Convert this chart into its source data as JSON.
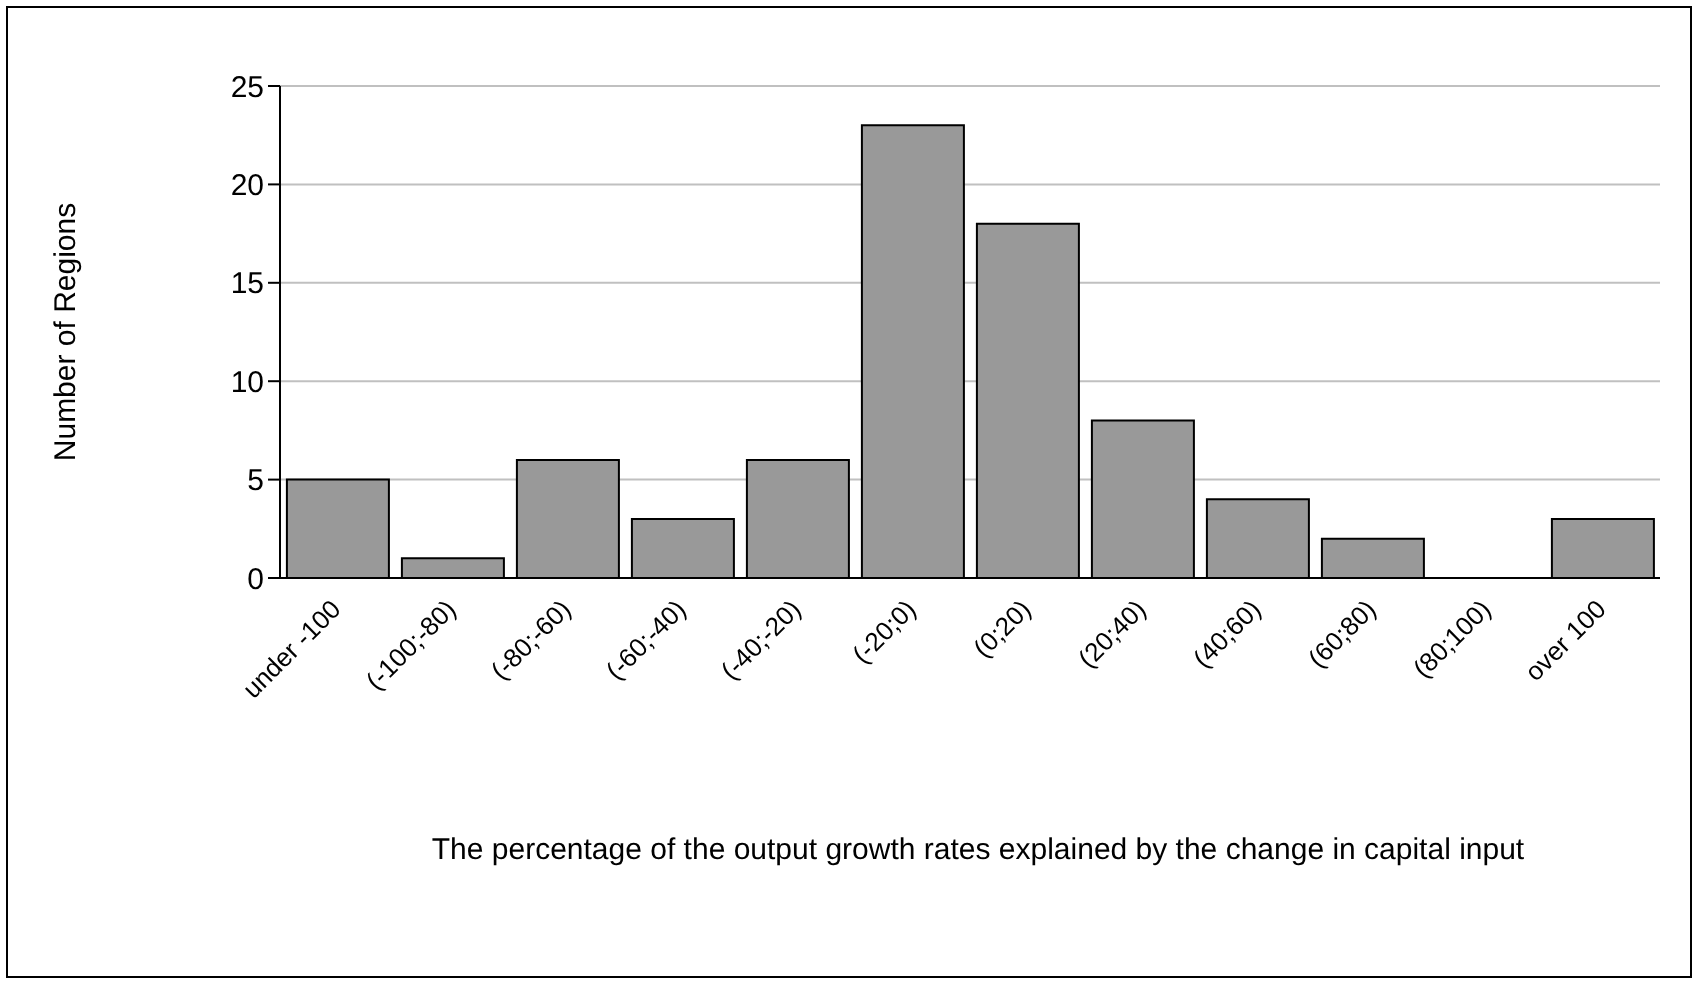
{
  "chart_data": {
    "type": "bar",
    "xlabel": "The percentage of the output growth rates explained by the change in capital input",
    "ylabel": "Number of Regions",
    "categories": [
      "under -100",
      "(-100;-80)",
      "(-80;-60)",
      "(-60;-40)",
      "(-40;-20)",
      "(-20;0)",
      "(0;20)",
      "(20;40)",
      "(40;60)",
      "(60;80)",
      "(80;100)",
      "over 100"
    ],
    "values": [
      5,
      1,
      6,
      3,
      6,
      23,
      18,
      8,
      4,
      2,
      0,
      3
    ],
    "color": "#999999",
    "ylim": [
      0,
      25
    ],
    "yticks": [
      0,
      5,
      10,
      15,
      20,
      25
    ],
    "grid": "y",
    "legend": false
  }
}
